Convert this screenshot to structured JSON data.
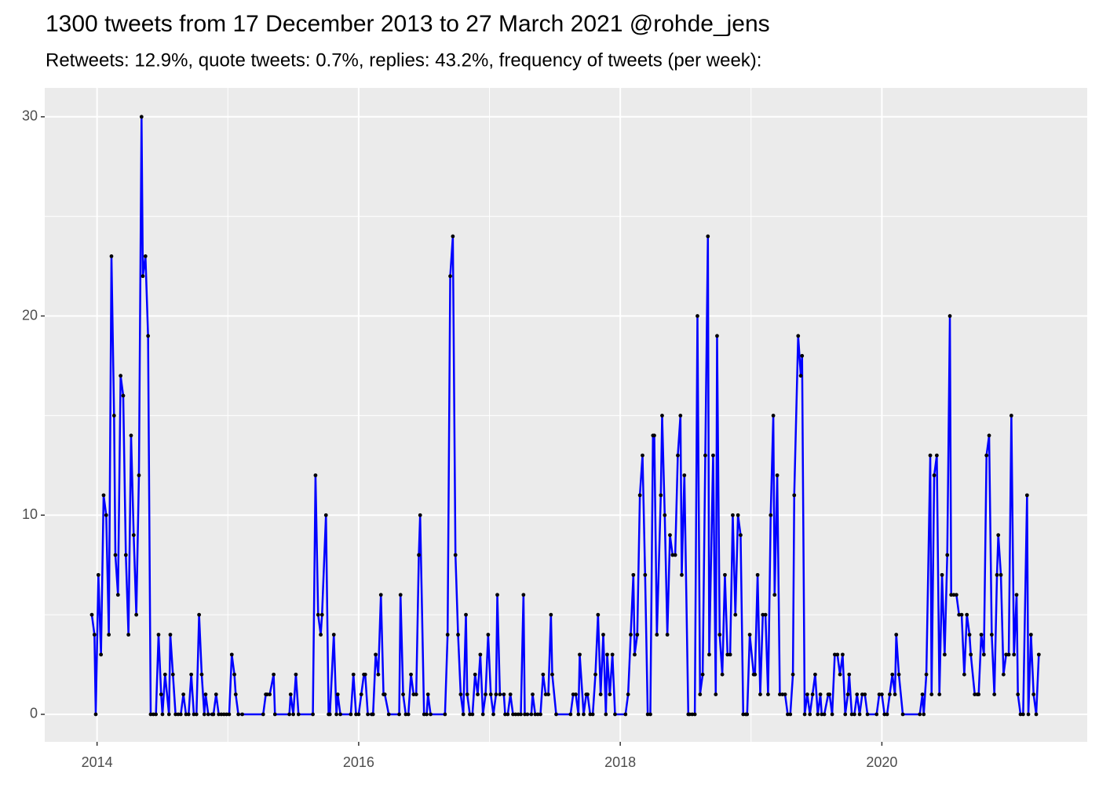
{
  "chart_data": {
    "type": "line",
    "title": "1300 tweets from 17 December 2013 to 27 March 2021 @rohde_jens",
    "subtitle": "Retweets: 12.9%, quote tweets: 0.7%, replies: 43.2%, frequency of tweets (per week):",
    "xlim": [
      2013.6,
      2021.57
    ],
    "ylim": [
      -1.38,
      31.45
    ],
    "xticks": [
      2014,
      2016,
      2018,
      2020
    ],
    "yticks": [
      0,
      10,
      20,
      30
    ],
    "grid": true,
    "line_color": "#0000ff",
    "point_color": "#000000",
    "x": [
      2013.96,
      2013.98,
      2013.99,
      2014.01,
      2014.03,
      2014.05,
      2014.07,
      2014.09,
      2014.11,
      2014.13,
      2014.14,
      2014.16,
      2014.18,
      2014.2,
      2014.22,
      2014.24,
      2014.26,
      2014.28,
      2014.3,
      2014.32,
      2014.34,
      2014.35,
      2014.37,
      2014.39,
      2014.41,
      2014.43,
      2014.45,
      2014.47,
      2014.49,
      2014.5,
      2014.52,
      2014.55,
      2014.56,
      2014.58,
      2014.6,
      2014.62,
      2014.64,
      2014.66,
      2014.68,
      2014.7,
      2014.72,
      2014.74,
      2014.76,
      2014.78,
      2014.8,
      2014.82,
      2014.83,
      2014.85,
      2014.88,
      2014.89,
      2014.91,
      2014.93,
      2014.95,
      2014.97,
      2014.99,
      2015.01,
      2015.03,
      2015.05,
      2015.06,
      2015.08,
      2015.11,
      2015.27,
      2015.29,
      2015.3,
      2015.32,
      2015.35,
      2015.36,
      2015.47,
      2015.48,
      2015.5,
      2015.52,
      2015.54,
      2015.65,
      2015.67,
      2015.69,
      2015.71,
      2015.72,
      2015.75,
      2015.77,
      2015.78,
      2015.81,
      2015.83,
      2015.84,
      2015.86,
      2015.94,
      2015.96,
      2015.98,
      2016.0,
      2016.02,
      2016.04,
      2016.05,
      2016.07,
      2016.1,
      2016.11,
      2016.13,
      2016.15,
      2016.17,
      2016.19,
      2016.2,
      2016.23,
      2016.31,
      2016.32,
      2016.34,
      2016.36,
      2016.38,
      2016.4,
      2016.42,
      2016.44,
      2016.46,
      2016.47,
      2016.5,
      2016.52,
      2016.53,
      2016.55,
      2016.66,
      2016.68,
      2016.7,
      2016.72,
      2016.74,
      2016.76,
      2016.78,
      2016.8,
      2016.82,
      2016.83,
      2016.85,
      2016.87,
      2016.89,
      2016.91,
      2016.93,
      2016.95,
      2016.97,
      2016.99,
      2017.01,
      2017.03,
      2017.05,
      2017.06,
      2017.08,
      2017.11,
      2017.12,
      2017.14,
      2017.16,
      2017.18,
      2017.2,
      2017.22,
      2017.24,
      2017.26,
      2017.27,
      2017.29,
      2017.32,
      2017.33,
      2017.35,
      2017.37,
      2017.39,
      2017.41,
      2017.43,
      2017.45,
      2017.47,
      2017.48,
      2017.51,
      2017.62,
      2017.64,
      2017.66,
      2017.68,
      2017.69,
      2017.72,
      2017.74,
      2017.75,
      2017.77,
      2017.79,
      2017.81,
      2017.83,
      2017.85,
      2017.87,
      2017.89,
      2017.9,
      2017.92,
      2017.94,
      2017.96,
      2018.04,
      2018.06,
      2018.08,
      2018.1,
      2018.11,
      2018.13,
      2018.15,
      2018.17,
      2018.19,
      2018.21,
      2018.23,
      2018.25,
      2018.26,
      2018.28,
      2018.31,
      2018.32,
      2018.34,
      2018.36,
      2018.38,
      2018.4,
      2018.42,
      2018.44,
      2018.46,
      2018.47,
      2018.49,
      2018.52,
      2018.53,
      2018.55,
      2018.57,
      2018.59,
      2018.61,
      2018.63,
      2018.65,
      2018.67,
      2018.68,
      2018.71,
      2018.73,
      2018.74,
      2018.76,
      2018.78,
      2018.8,
      2018.82,
      2018.84,
      2018.86,
      2018.88,
      2018.9,
      2018.92,
      2018.94,
      2018.96,
      2018.97,
      2018.99,
      2019.02,
      2019.03,
      2019.05,
      2019.07,
      2019.09,
      2019.11,
      2019.13,
      2019.15,
      2019.17,
      2019.18,
      2019.2,
      2019.22,
      2019.24,
      2019.26,
      2019.28,
      2019.3,
      2019.32,
      2019.33,
      2019.36,
      2019.38,
      2019.39,
      2019.41,
      2019.43,
      2019.45,
      2019.47,
      2019.49,
      2019.51,
      2019.53,
      2019.54,
      2019.56,
      2019.59,
      2019.6,
      2019.62,
      2019.64,
      2019.66,
      2019.68,
      2019.7,
      2019.72,
      2019.74,
      2019.75,
      2019.77,
      2019.79,
      2019.81,
      2019.83,
      2019.85,
      2019.87,
      2019.89,
      2019.96,
      2019.98,
      2020.0,
      2020.02,
      2020.04,
      2020.06,
      2020.08,
      2020.1,
      2020.11,
      2020.13,
      2020.16,
      2020.29,
      2020.31,
      2020.32,
      2020.34,
      2020.37,
      2020.38,
      2020.4,
      2020.42,
      2020.44,
      2020.46,
      2020.48,
      2020.5,
      2020.52,
      2020.53,
      2020.55,
      2020.57,
      2020.59,
      2020.61,
      2020.63,
      2020.65,
      2020.67,
      2020.68,
      2020.71,
      2020.73,
      2020.74,
      2020.76,
      2020.78,
      2020.8,
      2020.82,
      2020.84,
      2020.86,
      2020.88,
      2020.89,
      2020.91,
      2020.93,
      2020.95,
      2020.97,
      2020.99,
      2021.01,
      2021.03,
      2021.04,
      2021.06,
      2021.08,
      2021.11,
      2021.12,
      2021.14,
      2021.16,
      2021.18,
      2021.2
    ],
    "values": [
      5,
      4,
      0,
      7,
      3,
      11,
      10,
      4,
      23,
      15,
      8,
      6,
      17,
      16,
      8,
      4,
      14,
      9,
      5,
      12,
      30,
      22,
      23,
      19,
      0,
      0,
      0,
      4,
      1,
      0,
      2,
      0,
      4,
      2,
      0,
      0,
      0,
      1,
      0,
      0,
      2,
      0,
      0,
      5,
      2,
      0,
      1,
      0,
      0,
      0,
      1,
      0,
      0,
      0,
      0,
      0,
      3,
      2,
      1,
      0,
      0,
      0,
      1,
      1,
      1,
      2,
      0,
      0,
      1,
      0,
      2,
      0,
      0,
      12,
      5,
      4,
      5,
      10,
      0,
      0,
      4,
      0,
      1,
      0,
      0,
      2,
      0,
      0,
      1,
      2,
      2,
      0,
      0,
      0,
      3,
      2,
      6,
      1,
      1,
      0,
      0,
      6,
      1,
      0,
      0,
      2,
      1,
      1,
      8,
      10,
      0,
      0,
      1,
      0,
      0,
      4,
      22,
      24,
      8,
      4,
      1,
      0,
      5,
      1,
      0,
      0,
      2,
      1,
      3,
      0,
      1,
      4,
      1,
      0,
      1,
      6,
      1,
      1,
      0,
      0,
      1,
      0,
      0,
      0,
      0,
      6,
      0,
      0,
      0,
      1,
      0,
      0,
      0,
      2,
      1,
      1,
      5,
      2,
      0,
      0,
      1,
      1,
      0,
      3,
      0,
      1,
      1,
      0,
      0,
      2,
      5,
      1,
      4,
      0,
      3,
      1,
      3,
      0,
      0,
      1,
      4,
      7,
      3,
      4,
      11,
      13,
      7,
      0,
      0,
      14,
      14,
      4,
      11,
      15,
      10,
      4,
      9,
      8,
      8,
      13,
      15,
      7,
      12,
      0,
      0,
      0,
      0,
      20,
      1,
      2,
      13,
      24,
      3,
      13,
      1,
      19,
      4,
      2,
      7,
      3,
      3,
      10,
      5,
      10,
      9,
      0,
      0,
      0,
      4,
      2,
      2,
      7,
      1,
      5,
      5,
      1,
      10,
      15,
      6,
      12,
      1,
      1,
      1,
      0,
      0,
      2,
      11,
      19,
      17,
      18,
      0,
      1,
      0,
      1,
      2,
      0,
      1,
      0,
      0,
      1,
      1,
      0,
      3,
      3,
      2,
      3,
      0,
      1,
      2,
      0,
      0,
      1,
      0,
      1,
      1,
      0,
      0,
      1,
      1,
      0,
      0,
      1,
      2,
      1,
      4,
      2,
      0,
      0,
      1,
      0,
      2,
      13,
      1,
      12,
      13,
      1,
      7,
      3,
      8,
      20,
      6,
      6,
      6,
      5,
      5,
      2,
      5,
      4,
      3,
      1,
      1,
      1,
      4,
      3,
      13,
      14,
      4,
      1,
      7,
      9,
      7,
      2,
      3,
      3,
      15,
      3,
      6,
      1,
      0,
      0,
      11,
      0,
      4,
      1,
      0,
      3
    ]
  }
}
